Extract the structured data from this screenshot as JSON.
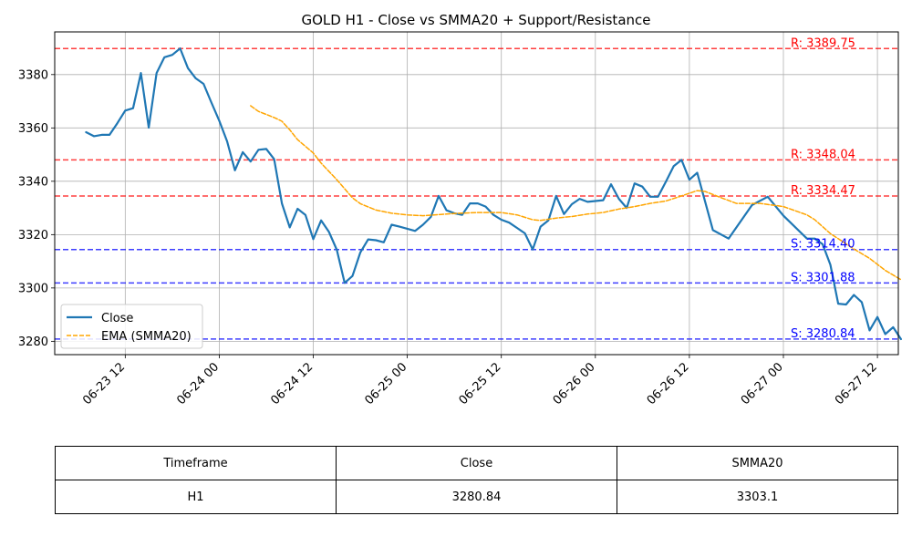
{
  "chart_data": {
    "type": "line",
    "title": "GOLD H1 - Close vs SMMA20 + Support/Resistance",
    "xlabel": "",
    "ylabel": "",
    "x_range": [
      "06-23 03:00",
      "06-27 14:40"
    ],
    "ylim": [
      3275,
      3396
    ],
    "grid": true,
    "legend_position": "lower-left",
    "x_ticks": [
      {
        "x": "06-23 12:00",
        "label": "06-23 12"
      },
      {
        "x": "06-24 00:00",
        "label": "06-24 00"
      },
      {
        "x": "06-24 12:00",
        "label": "06-24 12"
      },
      {
        "x": "06-25 00:00",
        "label": "06-25 00"
      },
      {
        "x": "06-25 12:00",
        "label": "06-25 12"
      },
      {
        "x": "06-26 00:00",
        "label": "06-26 00"
      },
      {
        "x": "06-26 12:00",
        "label": "06-26 12"
      },
      {
        "x": "06-27 00:00",
        "label": "06-27 00"
      },
      {
        "x": "06-27 12:00",
        "label": "06-27 12"
      }
    ],
    "y_ticks": [
      3280,
      3300,
      3320,
      3340,
      3360,
      3380
    ],
    "series": [
      {
        "name": "Close",
        "color": "#1f77b4",
        "style": "solid",
        "points": [
          [
            "06-23 07:00",
            3358.4
          ],
          [
            "06-23 08:00",
            3356.9
          ],
          [
            "06-23 09:00",
            3357.4
          ],
          [
            "06-23 10:00",
            3357.4
          ],
          [
            "06-23 11:00",
            3361.8
          ],
          [
            "06-23 12:00",
            3366.5
          ],
          [
            "06-23 13:00",
            3367.4
          ],
          [
            "06-23 14:00",
            3380.6
          ],
          [
            "06-23 15:00",
            3360.1
          ],
          [
            "06-23 16:00",
            3380.6
          ],
          [
            "06-23 17:00",
            3386.5
          ],
          [
            "06-23 18:00",
            3387.4
          ],
          [
            "06-23 19:00",
            3389.8
          ],
          [
            "06-23 20:00",
            3382.4
          ],
          [
            "06-23 21:00",
            3378.6
          ],
          [
            "06-23 22:00",
            3376.5
          ],
          [
            "06-23 23:00",
            3369.5
          ],
          [
            "06-24 00:00",
            3362.7
          ],
          [
            "06-24 01:00",
            3355.0
          ],
          [
            "06-24 02:00",
            3344.1
          ],
          [
            "06-24 03:00",
            3350.9
          ],
          [
            "06-24 04:00",
            3347.4
          ],
          [
            "06-24 05:00",
            3351.8
          ],
          [
            "06-24 06:00",
            3352.1
          ],
          [
            "06-24 07:00",
            3348.3
          ],
          [
            "06-24 08:00",
            3331.7
          ],
          [
            "06-24 09:00",
            3322.7
          ],
          [
            "06-24 10:00",
            3329.7
          ],
          [
            "06-24 11:00",
            3327.4
          ],
          [
            "06-24 12:00",
            3318.3
          ],
          [
            "06-24 13:00",
            3325.3
          ],
          [
            "06-24 14:00",
            3321.0
          ],
          [
            "06-24 15:00",
            3314.3
          ],
          [
            "06-24 16:00",
            3301.9
          ],
          [
            "06-24 17:00",
            3304.5
          ],
          [
            "06-24 18:00",
            3313.3
          ],
          [
            "06-24 19:00",
            3318.2
          ],
          [
            "06-24 20:00",
            3317.9
          ],
          [
            "06-24 21:00",
            3317.1
          ],
          [
            "06-24 22:00",
            3323.7
          ],
          [
            "06-24 23:00",
            3323.0
          ],
          [
            "06-25 00:00",
            3322.2
          ],
          [
            "06-25 01:00",
            3321.4
          ],
          [
            "06-25 02:00",
            3323.7
          ],
          [
            "06-25 03:00",
            3326.6
          ],
          [
            "06-25 04:00",
            3334.5
          ],
          [
            "06-25 05:00",
            3329.1
          ],
          [
            "06-25 06:00",
            3328.0
          ],
          [
            "06-25 07:00",
            3327.4
          ],
          [
            "06-25 08:00",
            3331.7
          ],
          [
            "06-25 09:00",
            3331.7
          ],
          [
            "06-25 10:00",
            3330.5
          ],
          [
            "06-25 11:00",
            3327.4
          ],
          [
            "06-25 12:00",
            3325.6
          ],
          [
            "06-25 13:00",
            3324.5
          ],
          [
            "06-25 14:00",
            3322.5
          ],
          [
            "06-25 15:00",
            3320.5
          ],
          [
            "06-25 16:00",
            3314.4
          ],
          [
            "06-25 17:00",
            3323.0
          ],
          [
            "06-25 18:00",
            3325.3
          ],
          [
            "06-25 19:00",
            3334.5
          ],
          [
            "06-25 20:00",
            3327.7
          ],
          [
            "06-25 21:00",
            3331.4
          ],
          [
            "06-25 22:00",
            3333.4
          ],
          [
            "06-25 23:00",
            3332.3
          ],
          [
            "06-26 00:00",
            3332.6
          ],
          [
            "06-26 01:00",
            3332.9
          ],
          [
            "06-26 02:00",
            3338.9
          ],
          [
            "06-26 03:00",
            3333.4
          ],
          [
            "06-26 04:00",
            3330.0
          ],
          [
            "06-26 05:00",
            3339.2
          ],
          [
            "06-26 06:00",
            3338.0
          ],
          [
            "06-26 07:00",
            3334.2
          ],
          [
            "06-26 08:00",
            3334.2
          ],
          [
            "06-26 09:00",
            3339.8
          ],
          [
            "06-26 10:00",
            3345.7
          ],
          [
            "06-26 11:00",
            3348.0
          ],
          [
            "06-26 12:00",
            3340.6
          ],
          [
            "06-26 13:00",
            3343.2
          ],
          [
            "06-26 15:00",
            3321.7
          ],
          [
            "06-26 17:00",
            3318.5
          ],
          [
            "06-26 20:00",
            3331.1
          ],
          [
            "06-26 22:00",
            3334.2
          ],
          [
            "06-27 00:00",
            3327.1
          ],
          [
            "06-27 03:00",
            3318.5
          ],
          [
            "06-27 04:00",
            3318.5
          ],
          [
            "06-27 05:00",
            3316.4
          ],
          [
            "06-27 06:00",
            3308.7
          ],
          [
            "06-27 07:00",
            3294.1
          ],
          [
            "06-27 08:00",
            3293.8
          ],
          [
            "06-27 09:00",
            3297.4
          ],
          [
            "06-27 10:00",
            3294.7
          ],
          [
            "06-27 11:00",
            3284.1
          ],
          [
            "06-27 12:00",
            3289.1
          ],
          [
            "06-27 13:00",
            3282.7
          ],
          [
            "06-27 14:00",
            3285.3
          ],
          [
            "06-27 15:00",
            3280.8
          ]
        ]
      },
      {
        "name": "EMA (SMMA20)",
        "color": "#ffa500",
        "style": "dashed",
        "points": [
          [
            "06-24 04:00",
            3368.3
          ],
          [
            "06-24 05:00",
            3366.2
          ],
          [
            "06-24 07:00",
            3363.9
          ],
          [
            "06-24 08:00",
            3362.5
          ],
          [
            "06-24 09:00",
            3359.3
          ],
          [
            "06-24 10:00",
            3355.6
          ],
          [
            "06-24 12:00",
            3350.6
          ],
          [
            "06-24 13:00",
            3346.8
          ],
          [
            "06-24 15:00",
            3340.6
          ],
          [
            "06-24 17:00",
            3333.8
          ],
          [
            "06-24 18:00",
            3331.6
          ],
          [
            "06-24 20:00",
            3329.2
          ],
          [
            "06-24 22:00",
            3328.0
          ],
          [
            "06-25 00:00",
            3327.4
          ],
          [
            "06-25 02:00",
            3327.1
          ],
          [
            "06-25 05:00",
            3327.7
          ],
          [
            "06-25 06:00",
            3327.9
          ],
          [
            "06-25 09:00",
            3328.3
          ],
          [
            "06-25 12:00",
            3328.3
          ],
          [
            "06-25 14:00",
            3327.4
          ],
          [
            "06-25 16:00",
            3325.6
          ],
          [
            "06-25 17:00",
            3325.3
          ],
          [
            "06-25 19:00",
            3326.2
          ],
          [
            "06-25 21:00",
            3326.8
          ],
          [
            "06-25 23:00",
            3327.7
          ],
          [
            "06-26 01:00",
            3328.3
          ],
          [
            "06-26 03:00",
            3329.6
          ],
          [
            "06-26 05:00",
            3330.5
          ],
          [
            "06-26 07:00",
            3331.7
          ],
          [
            "06-26 09:00",
            3332.6
          ],
          [
            "06-26 11:00",
            3334.5
          ],
          [
            "06-26 13:00",
            3336.5
          ],
          [
            "06-26 14:00",
            3336.2
          ],
          [
            "06-26 16:00",
            3333.9
          ],
          [
            "06-26 18:00",
            3331.7
          ],
          [
            "06-26 21:00",
            3331.7
          ],
          [
            "06-27 00:00",
            3330.5
          ],
          [
            "06-27 03:00",
            3327.4
          ],
          [
            "06-27 04:00",
            3325.6
          ],
          [
            "06-27 06:00",
            3320.4
          ],
          [
            "06-27 09:00",
            3314.6
          ],
          [
            "06-27 11:00",
            3311.1
          ],
          [
            "06-27 13:00",
            3306.6
          ],
          [
            "06-27 15:00",
            3303.1
          ]
        ]
      }
    ],
    "levels": [
      {
        "kind": "resistance",
        "value": 3389.75,
        "label": "R: 3389.75",
        "color": "#ff0000"
      },
      {
        "kind": "resistance",
        "value": 3348.04,
        "label": "R: 3348.04",
        "color": "#ff0000"
      },
      {
        "kind": "resistance",
        "value": 3334.47,
        "label": "R: 3334.47",
        "color": "#ff0000"
      },
      {
        "kind": "support",
        "value": 3314.4,
        "label": "S: 3314.40",
        "color": "#0000ff"
      },
      {
        "kind": "support",
        "value": 3301.88,
        "label": "S: 3301.88",
        "color": "#0000ff"
      },
      {
        "kind": "support",
        "value": 3280.84,
        "label": "S: 3280.84",
        "color": "#0000ff"
      }
    ]
  },
  "table": {
    "headers": [
      "Timeframe",
      "Close",
      "SMMA20"
    ],
    "row": [
      "H1",
      "3280.84",
      "3303.1"
    ]
  }
}
